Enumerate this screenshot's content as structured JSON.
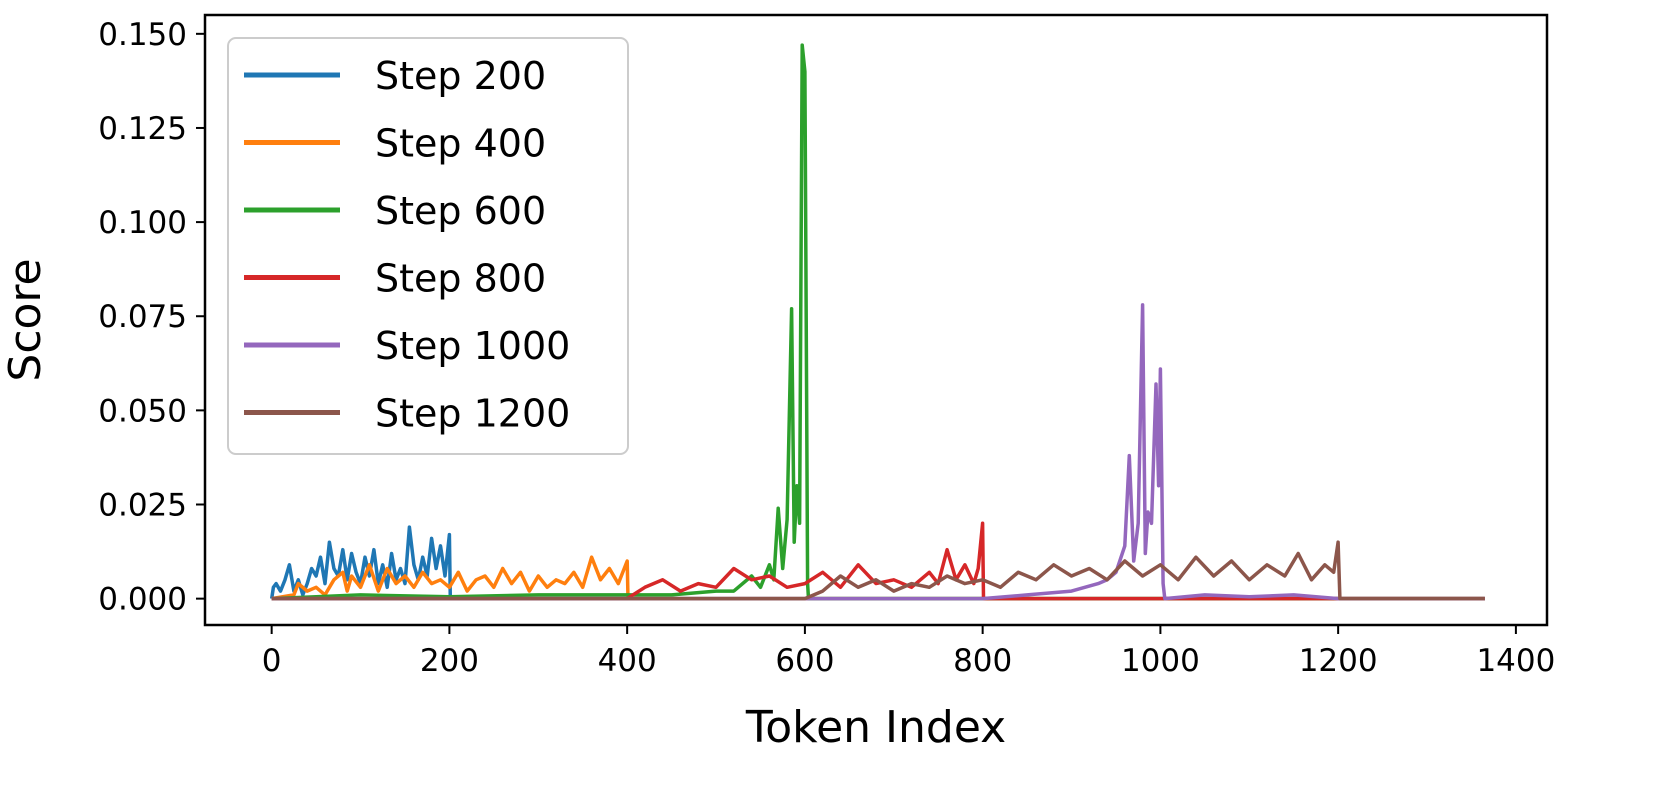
{
  "chart_data": {
    "type": "line",
    "title": "",
    "xlabel": "Token Index",
    "ylabel": "Score",
    "xlim": [
      -75,
      1435
    ],
    "ylim": [
      -0.007,
      0.155
    ],
    "xticks": [
      0,
      200,
      400,
      600,
      800,
      1000,
      1200,
      1400
    ],
    "xtick_labels": [
      "0",
      "200",
      "400",
      "600",
      "800",
      "1000",
      "1200",
      "1400"
    ],
    "yticks": [
      0.0,
      0.025,
      0.05,
      0.075,
      0.1,
      0.125,
      0.15
    ],
    "ytick_labels": [
      "0.000",
      "0.025",
      "0.050",
      "0.075",
      "0.100",
      "0.125",
      "0.150"
    ],
    "grid": false,
    "legend_position": "top-left",
    "series": [
      {
        "name": "Step 200",
        "color": "#1f77b4",
        "x": [
          0,
          2,
          5,
          10,
          15,
          20,
          25,
          30,
          35,
          40,
          45,
          50,
          55,
          60,
          65,
          70,
          75,
          80,
          85,
          90,
          95,
          100,
          105,
          110,
          115,
          120,
          125,
          130,
          135,
          140,
          145,
          150,
          155,
          160,
          165,
          170,
          175,
          180,
          185,
          190,
          195,
          200,
          201,
          1365
        ],
        "y": [
          0.0,
          0.003,
          0.004,
          0.002,
          0.005,
          0.009,
          0.002,
          0.005,
          0.001,
          0.004,
          0.008,
          0.006,
          0.011,
          0.004,
          0.015,
          0.008,
          0.006,
          0.013,
          0.005,
          0.012,
          0.007,
          0.004,
          0.011,
          0.006,
          0.013,
          0.004,
          0.009,
          0.003,
          0.012,
          0.005,
          0.008,
          0.004,
          0.019,
          0.009,
          0.005,
          0.011,
          0.006,
          0.016,
          0.008,
          0.014,
          0.006,
          0.017,
          0.0,
          0.0
        ]
      },
      {
        "name": "Step 400",
        "color": "#ff7f0e",
        "x": [
          0,
          25,
          30,
          40,
          50,
          60,
          70,
          80,
          85,
          90,
          100,
          110,
          120,
          130,
          140,
          150,
          160,
          170,
          180,
          190,
          200,
          210,
          220,
          230,
          240,
          250,
          260,
          270,
          280,
          290,
          300,
          310,
          320,
          330,
          340,
          350,
          360,
          370,
          380,
          390,
          400,
          401,
          1365
        ],
        "y": [
          0.0,
          0.001,
          0.004,
          0.002,
          0.003,
          0.001,
          0.005,
          0.007,
          0.002,
          0.006,
          0.003,
          0.009,
          0.002,
          0.008,
          0.004,
          0.006,
          0.003,
          0.007,
          0.004,
          0.005,
          0.003,
          0.007,
          0.002,
          0.005,
          0.006,
          0.003,
          0.008,
          0.004,
          0.007,
          0.002,
          0.006,
          0.003,
          0.005,
          0.004,
          0.007,
          0.003,
          0.011,
          0.005,
          0.008,
          0.004,
          0.01,
          0.0,
          0.0
        ]
      },
      {
        "name": "Step 600",
        "color": "#2ca02c",
        "x": [
          0,
          100,
          200,
          300,
          400,
          450,
          500,
          520,
          540,
          550,
          560,
          565,
          570,
          575,
          580,
          585,
          588,
          591,
          594,
          597,
          600,
          603,
          604,
          1365
        ],
        "y": [
          0.0,
          0.001,
          0.0005,
          0.001,
          0.001,
          0.001,
          0.002,
          0.002,
          0.006,
          0.003,
          0.009,
          0.005,
          0.024,
          0.008,
          0.021,
          0.077,
          0.015,
          0.03,
          0.02,
          0.147,
          0.14,
          0.004,
          0.0,
          0.0
        ]
      },
      {
        "name": "Step 800",
        "color": "#d62728",
        "x": [
          0,
          400,
          420,
          440,
          460,
          480,
          500,
          520,
          540,
          560,
          580,
          600,
          620,
          640,
          660,
          680,
          700,
          720,
          740,
          750,
          760,
          770,
          780,
          790,
          795,
          800,
          801,
          1365
        ],
        "y": [
          0.0,
          0.0,
          0.003,
          0.005,
          0.002,
          0.004,
          0.003,
          0.008,
          0.005,
          0.006,
          0.003,
          0.004,
          0.007,
          0.003,
          0.009,
          0.004,
          0.005,
          0.003,
          0.007,
          0.004,
          0.013,
          0.005,
          0.009,
          0.004,
          0.008,
          0.02,
          0.0,
          0.0
        ]
      },
      {
        "name": "Step 1000",
        "color": "#9467bd",
        "x": [
          0,
          800,
          850,
          900,
          930,
          940,
          950,
          960,
          965,
          970,
          975,
          980,
          983,
          986,
          990,
          995,
          998,
          1000,
          1003,
          1005,
          1050,
          1100,
          1150,
          1200,
          1365
        ],
        "y": [
          0.0,
          0.0,
          0.001,
          0.002,
          0.004,
          0.005,
          0.007,
          0.014,
          0.038,
          0.01,
          0.02,
          0.078,
          0.012,
          0.023,
          0.02,
          0.057,
          0.03,
          0.061,
          0.004,
          0.0,
          0.001,
          0.0005,
          0.001,
          0.0,
          0.0
        ]
      },
      {
        "name": "Step 1200",
        "color": "#8c564b",
        "x": [
          0,
          600,
          620,
          640,
          660,
          680,
          700,
          720,
          740,
          760,
          780,
          800,
          820,
          840,
          860,
          880,
          900,
          920,
          940,
          960,
          980,
          1000,
          1020,
          1040,
          1060,
          1080,
          1100,
          1120,
          1140,
          1155,
          1170,
          1185,
          1195,
          1200,
          1202,
          1365
        ],
        "y": [
          0.0,
          0.0,
          0.002,
          0.006,
          0.003,
          0.005,
          0.002,
          0.004,
          0.003,
          0.006,
          0.004,
          0.005,
          0.003,
          0.007,
          0.005,
          0.009,
          0.006,
          0.008,
          0.005,
          0.01,
          0.006,
          0.009,
          0.005,
          0.011,
          0.006,
          0.01,
          0.005,
          0.009,
          0.006,
          0.012,
          0.005,
          0.009,
          0.007,
          0.015,
          0.0,
          0.0
        ]
      }
    ]
  }
}
